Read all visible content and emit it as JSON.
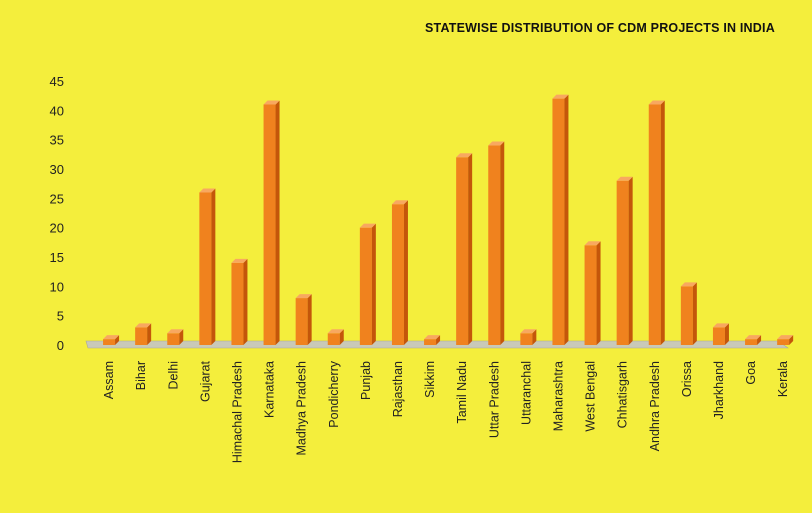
{
  "chart_data": {
    "type": "bar",
    "title": "Statewise distribution of CDM projects in India",
    "categories": [
      "Assam",
      "Bihar",
      "Delhi",
      "Gujarat",
      "Himachal Pradesh",
      "Karnataka",
      "Madhya Pradesh",
      "Pondicherry",
      "Punjab",
      "Rajasthan",
      "Sikkim",
      "Tamil Nadu",
      "Uttar Pradesh",
      "Uttaranchal",
      "Maharashtra",
      "West Bengal",
      "Chhatisgarh",
      "Andhra Pradesh",
      "Orissa",
      "Jharkhand",
      "Goa",
      "Kerala"
    ],
    "values": [
      1,
      3,
      2,
      26,
      14,
      41,
      8,
      2,
      20,
      24,
      1,
      32,
      34,
      2,
      42,
      17,
      28,
      41,
      10,
      3,
      1,
      1
    ],
    "ylim": [
      0,
      45
    ],
    "yticks": [
      0,
      5,
      10,
      15,
      20,
      25,
      30,
      35,
      40,
      45
    ],
    "grid": false,
    "legend": "none"
  },
  "colors": {
    "background": "#f4ee3c",
    "bar_front": "#f0821e",
    "bar_side": "#c4560a",
    "bar_top": "#f8a860",
    "floor": "#c9c9b8"
  }
}
